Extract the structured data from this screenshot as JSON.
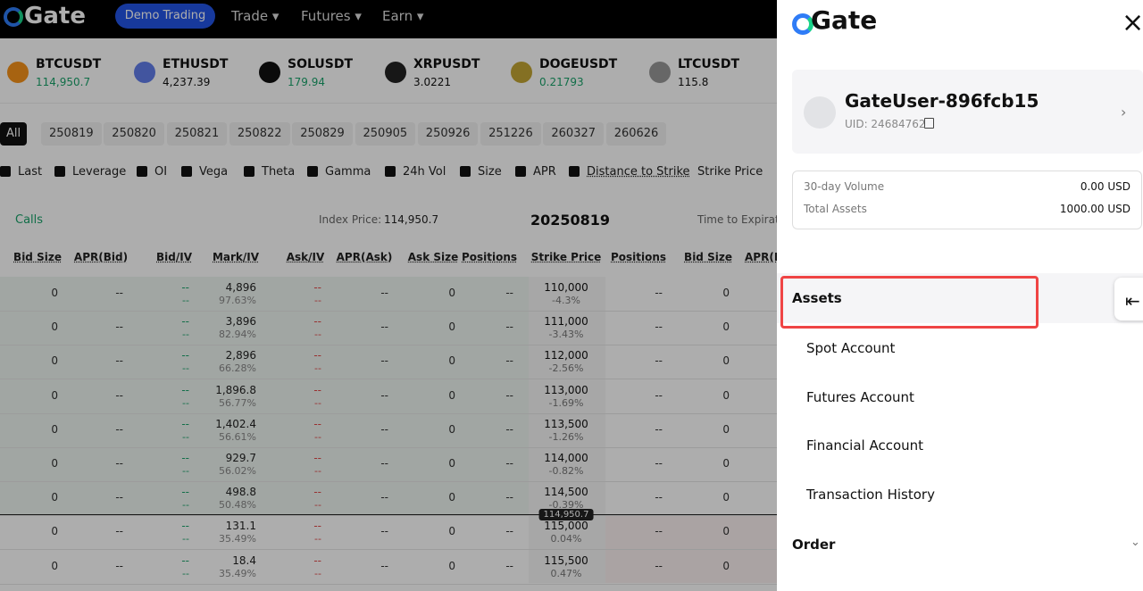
{
  "header": {
    "logo": "Gate",
    "demo_button": "Demo Trading",
    "nav": [
      "Trade",
      "Futures",
      "Earn"
    ]
  },
  "tickers": [
    {
      "symbol": "BTCUSDT",
      "price": "114,950.7"
    },
    {
      "symbol": "ETHUSDT",
      "price": "4,237.39"
    },
    {
      "symbol": "SOLUSDT",
      "price": "179.94"
    },
    {
      "symbol": "XRPUSDT",
      "price": "3.0221"
    },
    {
      "symbol": "DOGEUSDT",
      "price": "0.21793"
    },
    {
      "symbol": "LTCUSDT",
      "price": "115.8"
    }
  ],
  "expiries": [
    "All",
    "250819",
    "250820",
    "250821",
    "250822",
    "250829",
    "250905",
    "250926",
    "251226",
    "260327",
    "260626"
  ],
  "column_toggles": [
    "Last",
    "Leverage",
    "OI",
    "Vega",
    "Theta",
    "Gamma",
    "24h Vol",
    "Size",
    "APR",
    "Distance to Strike"
  ],
  "strike_price_toggle": "Strike Price",
  "info_bar": {
    "calls": "Calls",
    "index_label": "Index Price:",
    "index_value": "114,950.7",
    "expiry": "20250819",
    "time_to_expiry": "Time to Expirat"
  },
  "table": {
    "headers": [
      "Bid Size",
      "APR(Bid)",
      "Bid/IV",
      "Mark/IV",
      "Ask/IV",
      "APR(Ask)",
      "Ask Size",
      "Positions",
      "Strike Price",
      "Positions",
      "Bid Size",
      "APR(B"
    ],
    "rows": [
      [
        "0",
        "--",
        "--",
        "--",
        "4,896",
        "97.63%",
        "--",
        "--",
        "--",
        "0",
        "--",
        "110,000",
        "-4.3%",
        "--",
        "0"
      ],
      [
        "0",
        "--",
        "--",
        "--",
        "3,896",
        "82.94%",
        "--",
        "--",
        "--",
        "0",
        "--",
        "111,000",
        "-3.43%",
        "--",
        "0"
      ],
      [
        "0",
        "--",
        "--",
        "--",
        "2,896",
        "66.28%",
        "--",
        "--",
        "--",
        "0",
        "--",
        "112,000",
        "-2.56%",
        "--",
        "0"
      ],
      [
        "0",
        "--",
        "--",
        "--",
        "1,896.8",
        "56.77%",
        "--",
        "--",
        "--",
        "0",
        "--",
        "113,000",
        "-1.69%",
        "--",
        "0"
      ],
      [
        "0",
        "--",
        "--",
        "--",
        "1,402.4",
        "56.61%",
        "--",
        "--",
        "--",
        "0",
        "--",
        "113,500",
        "-1.26%",
        "--",
        "0"
      ],
      [
        "0",
        "--",
        "--",
        "--",
        "929.7",
        "56.02%",
        "--",
        "--",
        "--",
        "0",
        "--",
        "114,000",
        "-0.82%",
        "--",
        "0"
      ],
      [
        "0",
        "--",
        "--",
        "--",
        "498.8",
        "50.48%",
        "--",
        "--",
        "--",
        "0",
        "--",
        "114,500",
        "-0.39%",
        "--",
        "0"
      ],
      [
        "0",
        "--",
        "--",
        "--",
        "131.1",
        "35.49%",
        "--",
        "--",
        "--",
        "0",
        "--",
        "115,000",
        "0.04%",
        "--",
        "0"
      ],
      [
        "0",
        "--",
        "--",
        "--",
        "18.4",
        "35.49%",
        "--",
        "--",
        "--",
        "0",
        "--",
        "115,500",
        "0.47%",
        "--",
        "0"
      ]
    ],
    "index_marker": "114,950.7"
  },
  "panel": {
    "logo": "Gate",
    "close": "×",
    "username": "GateUser-896fcb15",
    "uid": "UID: 24684762",
    "stats": [
      [
        "30-day Volume",
        "0.00 USD"
      ],
      [
        "Total Assets",
        "1000.00 USD"
      ]
    ],
    "menu": [
      "Assets",
      "Spot Account",
      "Futures Account",
      "Financial Account",
      "Transaction History",
      "Order"
    ]
  }
}
